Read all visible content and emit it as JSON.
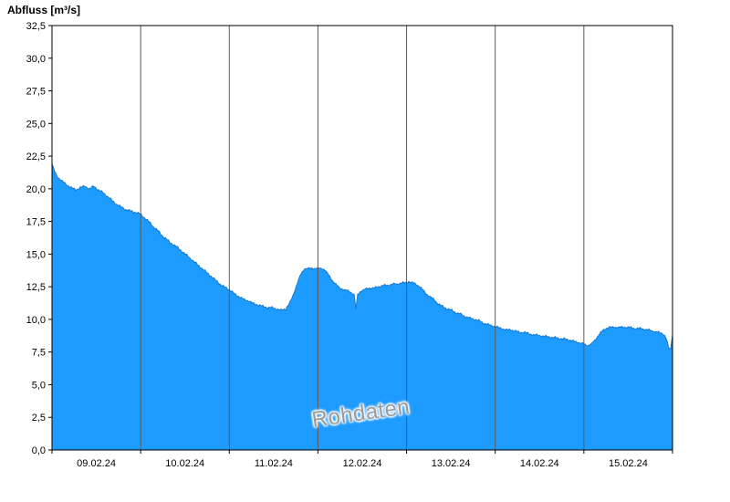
{
  "chart_data": {
    "type": "area",
    "title": "Abfluss [m³/s]",
    "watermark": "Rohdaten",
    "xlabel": "",
    "ylabel": "Abfluss [m³/s]",
    "ylim": [
      0,
      32.5
    ],
    "x_range_days": [
      0,
      7
    ],
    "grid": "vertical-day-lines",
    "legend": "none",
    "x_tick_labels": [
      "09.02.24",
      "10.02.24",
      "11.02.24",
      "12.02.24",
      "13.02.24",
      "14.02.24",
      "15.02.24"
    ],
    "y_ticks": [
      0,
      2.5,
      5,
      7.5,
      10,
      12.5,
      15,
      17.5,
      20,
      22.5,
      25,
      27.5,
      30,
      32.5
    ],
    "y_tick_labels": [
      "0,0",
      "2,5",
      "5,0",
      "7,5",
      "10,0",
      "12,5",
      "15,0",
      "17,5",
      "20,0",
      "22,5",
      "25,0",
      "27,5",
      "30,0",
      "32,5"
    ],
    "colors": {
      "fill": "#1e9bff",
      "stroke": "#1478d2",
      "grid": "#5a5a5a",
      "axis": "#000000",
      "watermark": "#9b9b9b"
    },
    "series": [
      {
        "name": "Abfluss Rohdaten",
        "x_unit": "days since 09.02.24 00:00",
        "points": [
          [
            0.0,
            21.9
          ],
          [
            0.031,
            21.3
          ],
          [
            0.062,
            20.9
          ],
          [
            0.113,
            20.6
          ],
          [
            0.165,
            20.3
          ],
          [
            0.216,
            20.1
          ],
          [
            0.268,
            19.9
          ],
          [
            0.319,
            20.1
          ],
          [
            0.371,
            20.2
          ],
          [
            0.422,
            20.0
          ],
          [
            0.473,
            20.2
          ],
          [
            0.525,
            19.9
          ],
          [
            0.576,
            19.7
          ],
          [
            0.628,
            19.4
          ],
          [
            0.679,
            19.1
          ],
          [
            0.731,
            18.8
          ],
          [
            0.782,
            18.6
          ],
          [
            0.834,
            18.4
          ],
          [
            0.885,
            18.3
          ],
          [
            0.937,
            18.2
          ],
          [
            0.988,
            18.1
          ],
          [
            1.04,
            17.8
          ],
          [
            1.091,
            17.5
          ],
          [
            1.143,
            17.1
          ],
          [
            1.194,
            16.8
          ],
          [
            1.245,
            16.4
          ],
          [
            1.297,
            16.1
          ],
          [
            1.348,
            15.8
          ],
          [
            1.4,
            15.6
          ],
          [
            1.451,
            15.3
          ],
          [
            1.503,
            15.0
          ],
          [
            1.554,
            14.7
          ],
          [
            1.606,
            14.4
          ],
          [
            1.657,
            14.1
          ],
          [
            1.709,
            13.8
          ],
          [
            1.76,
            13.5
          ],
          [
            1.812,
            13.2
          ],
          [
            1.863,
            12.9
          ],
          [
            1.914,
            12.6
          ],
          [
            1.966,
            12.4
          ],
          [
            2.017,
            12.2
          ],
          [
            2.069,
            11.9
          ],
          [
            2.12,
            11.7
          ],
          [
            2.172,
            11.5
          ],
          [
            2.223,
            11.4
          ],
          [
            2.275,
            11.2
          ],
          [
            2.326,
            11.1
          ],
          [
            2.378,
            11.0
          ],
          [
            2.429,
            10.9
          ],
          [
            2.481,
            10.9
          ],
          [
            2.532,
            10.8
          ],
          [
            2.584,
            10.7
          ],
          [
            2.635,
            10.8
          ],
          [
            2.687,
            11.3
          ],
          [
            2.728,
            12.0
          ],
          [
            2.769,
            12.8
          ],
          [
            2.81,
            13.5
          ],
          [
            2.851,
            13.9
          ],
          [
            2.913,
            13.9
          ],
          [
            2.975,
            13.9
          ],
          [
            3.037,
            13.9
          ],
          [
            3.078,
            13.8
          ],
          [
            3.119,
            13.4
          ],
          [
            3.16,
            13.0
          ],
          [
            3.201,
            12.7
          ],
          [
            3.243,
            12.4
          ],
          [
            3.284,
            12.3
          ],
          [
            3.325,
            12.2
          ],
          [
            3.366,
            12.1
          ],
          [
            3.407,
            11.9
          ],
          [
            3.428,
            10.8
          ],
          [
            3.449,
            11.9
          ],
          [
            3.49,
            12.2
          ],
          [
            3.531,
            12.3
          ],
          [
            3.582,
            12.4
          ],
          [
            3.634,
            12.4
          ],
          [
            3.685,
            12.5
          ],
          [
            3.737,
            12.6
          ],
          [
            3.788,
            12.6
          ],
          [
            3.84,
            12.7
          ],
          [
            3.891,
            12.7
          ],
          [
            3.943,
            12.8
          ],
          [
            3.994,
            12.8
          ],
          [
            4.025,
            12.9
          ],
          [
            4.066,
            12.8
          ],
          [
            4.107,
            12.7
          ],
          [
            4.148,
            12.5
          ],
          [
            4.19,
            12.2
          ],
          [
            4.231,
            11.9
          ],
          [
            4.272,
            11.7
          ],
          [
            4.313,
            11.5
          ],
          [
            4.354,
            11.2
          ],
          [
            4.406,
            11.0
          ],
          [
            4.457,
            10.8
          ],
          [
            4.509,
            10.7
          ],
          [
            4.56,
            10.5
          ],
          [
            4.612,
            10.4
          ],
          [
            4.663,
            10.2
          ],
          [
            4.715,
            10.1
          ],
          [
            4.766,
            10.0
          ],
          [
            4.817,
            9.9
          ],
          [
            4.869,
            9.7
          ],
          [
            4.92,
            9.6
          ],
          [
            4.972,
            9.5
          ],
          [
            5.023,
            9.4
          ],
          [
            5.075,
            9.3
          ],
          [
            5.126,
            9.2
          ],
          [
            5.177,
            9.2
          ],
          [
            5.229,
            9.1
          ],
          [
            5.28,
            9.0
          ],
          [
            5.332,
            9.0
          ],
          [
            5.383,
            8.9
          ],
          [
            5.434,
            8.8
          ],
          [
            5.486,
            8.8
          ],
          [
            5.537,
            8.7
          ],
          [
            5.589,
            8.7
          ],
          [
            5.64,
            8.6
          ],
          [
            5.692,
            8.6
          ],
          [
            5.743,
            8.5
          ],
          [
            5.794,
            8.5
          ],
          [
            5.846,
            8.4
          ],
          [
            5.897,
            8.3
          ],
          [
            5.959,
            8.2
          ],
          [
            6.0,
            8.1
          ],
          [
            6.041,
            8.0
          ],
          [
            6.083,
            8.1
          ],
          [
            6.124,
            8.4
          ],
          [
            6.165,
            8.8
          ],
          [
            6.206,
            9.1
          ],
          [
            6.247,
            9.3
          ],
          [
            6.288,
            9.4
          ],
          [
            6.36,
            9.4
          ],
          [
            6.432,
            9.4
          ],
          [
            6.504,
            9.4
          ],
          [
            6.576,
            9.3
          ],
          [
            6.648,
            9.3
          ],
          [
            6.72,
            9.2
          ],
          [
            6.782,
            9.1
          ],
          [
            6.844,
            9.0
          ],
          [
            6.895,
            8.9
          ],
          [
            6.926,
            8.6
          ],
          [
            6.957,
            7.8
          ],
          [
            6.978,
            7.7
          ],
          [
            6.998,
            8.7
          ]
        ]
      }
    ]
  }
}
